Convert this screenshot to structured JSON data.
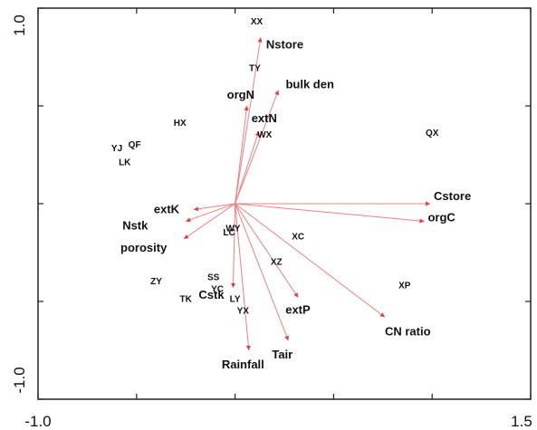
{
  "chart_data": {
    "type": "scatter",
    "title": "",
    "xlabel": "",
    "ylabel": "",
    "xlim": [
      -1.0,
      1.5
    ],
    "ylim": [
      -1.0,
      1.0
    ],
    "x_tick_labels": [
      "-1.0",
      "1.5"
    ],
    "y_tick_labels": [
      "1.0",
      "-1.0"
    ],
    "x_tick_values": [
      -1.0,
      -0.5,
      0.0,
      0.5,
      1.0,
      1.5
    ],
    "y_tick_values": [
      -1.0,
      -0.5,
      0.0,
      0.5,
      1.0
    ],
    "grid": false,
    "arrow_color": "#e23b3b",
    "arrow_origin": [
      0.0,
      0.0
    ],
    "variables": [
      {
        "label": "Nstore",
        "x": 0.13,
        "y": 0.85
      },
      {
        "label": "bulk den",
        "x": 0.22,
        "y": 0.58
      },
      {
        "label": "orgN",
        "x": 0.06,
        "y": 0.5
      },
      {
        "label": "extN",
        "x": 0.12,
        "y": 0.37
      },
      {
        "label": "Cstore",
        "x": 0.99,
        "y": 0.0
      },
      {
        "label": "orgC",
        "x": 0.96,
        "y": -0.09
      },
      {
        "label": "extK",
        "x": -0.21,
        "y": -0.03
      },
      {
        "label": "Nstk",
        "x": -0.25,
        "y": -0.09
      },
      {
        "label": "porosity",
        "x": -0.26,
        "y": -0.18
      },
      {
        "label": "Cstk",
        "x": -0.01,
        "y": -0.43
      },
      {
        "label": "extP",
        "x": 0.32,
        "y": -0.48
      },
      {
        "label": "Tair",
        "x": 0.27,
        "y": -0.7
      },
      {
        "label": "Rainfall",
        "x": 0.07,
        "y": -0.75
      },
      {
        "label": "CN ratio",
        "x": 0.76,
        "y": -0.58
      }
    ],
    "sites": [
      {
        "label": "XX",
        "x": 0.11,
        "y": 0.93
      },
      {
        "label": "TY",
        "x": 0.1,
        "y": 0.69
      },
      {
        "label": "HX",
        "x": -0.28,
        "y": 0.41
      },
      {
        "label": "WX",
        "x": 0.15,
        "y": 0.35
      },
      {
        "label": "QX",
        "x": 1.0,
        "y": 0.36
      },
      {
        "label": "YJ",
        "x": -0.6,
        "y": 0.28
      },
      {
        "label": "QF",
        "x": -0.51,
        "y": 0.3
      },
      {
        "label": "LK",
        "x": -0.56,
        "y": 0.21
      },
      {
        "label": "WY",
        "x": -0.01,
        "y": -0.13
      },
      {
        "label": "LC",
        "x": -0.03,
        "y": -0.15
      },
      {
        "label": "XC",
        "x": 0.32,
        "y": -0.17
      },
      {
        "label": "XZ",
        "x": 0.21,
        "y": -0.3
      },
      {
        "label": "ZY",
        "x": -0.4,
        "y": -0.4
      },
      {
        "label": "SS",
        "x": -0.11,
        "y": -0.38
      },
      {
        "label": "YC",
        "x": -0.09,
        "y": -0.44
      },
      {
        "label": "TK",
        "x": -0.25,
        "y": -0.49
      },
      {
        "label": "LY",
        "x": 0.0,
        "y": -0.49
      },
      {
        "label": "YX",
        "x": 0.04,
        "y": -0.55
      },
      {
        "label": "XP",
        "x": 0.86,
        "y": -0.42
      }
    ]
  }
}
